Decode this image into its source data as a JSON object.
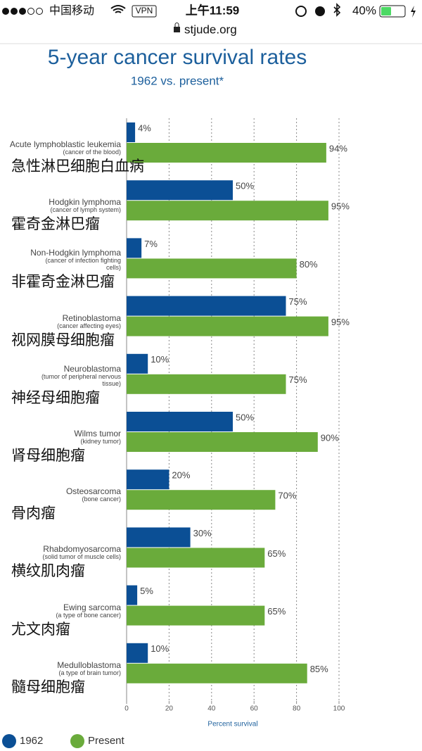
{
  "status_bar": {
    "carrier": "中国移动",
    "vpn": "VPN",
    "time": "上午11:59",
    "battery": "40%",
    "url": "stjude.org"
  },
  "chart_data": {
    "type": "bar",
    "orientation": "horizontal",
    "title": "5-year cancer survival rates",
    "subtitle": "1962 vs. present*",
    "categories": [
      "Acute lymphoblastic leukemia",
      "Hodgkin lymphoma",
      "Non-Hodgkin lymphoma",
      "Retinoblastoma",
      "Neuroblastoma",
      "Wilms tumor",
      "Osteosarcoma",
      "Rhabdomyosarcoma",
      "Ewing sarcoma",
      "Medulloblastoma"
    ],
    "descriptions": [
      "(cancer of the blood)",
      "(cancer of lymph system)",
      "(cancer of infection fighting cells)",
      "(cancer affecting eyes)",
      "(tumor of peripheral nervous tissue)",
      "(kidney tumor)",
      "(bone cancer)",
      "(solid tumor of muscle cells)",
      "(a type of bone cancer)",
      "(a type of brain tumor)"
    ],
    "chinese_names": [
      "急性淋巴细胞白血病",
      "霍奇金淋巴瘤",
      "非霍奇金淋巴瘤",
      "视网膜母细胞瘤",
      "神经母细胞瘤",
      "肾母细胞瘤",
      "骨肉瘤",
      "横纹肌肉瘤",
      "尤文肉瘤",
      "髓母细胞瘤"
    ],
    "series": [
      {
        "name": "1962",
        "color": "#0b4f95",
        "values": [
          4,
          50,
          7,
          75,
          10,
          50,
          20,
          30,
          5,
          10
        ],
        "value_labels": [
          "4%",
          "50%",
          "7%",
          "75%",
          "10%",
          "50%",
          "20%",
          "30%",
          "5%",
          "10%"
        ]
      },
      {
        "name": "Present",
        "color": "#6aab3b",
        "values": [
          94,
          95,
          80,
          95,
          75,
          90,
          70,
          65,
          65,
          85
        ],
        "value_labels": [
          "94%",
          "95%",
          "80%",
          "95%",
          "75%",
          "90%",
          "70%",
          "65%",
          "65%",
          "85%"
        ]
      }
    ],
    "xlabel": "Percent survival",
    "xlim": [
      0,
      100
    ],
    "xticks": [
      0,
      20,
      40,
      60,
      80,
      100
    ],
    "grid": true,
    "legend": "bottom-left"
  }
}
